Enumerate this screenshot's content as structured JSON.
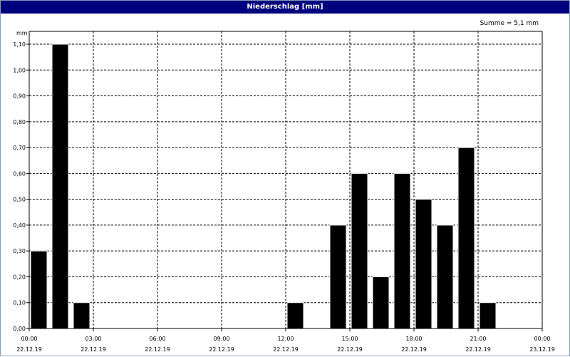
{
  "window": {
    "title": "Niederschlag [mm]",
    "colors": {
      "title_bar": "#00007f",
      "title_text": "#ffffff",
      "bar": "#000000",
      "grid": "#000000"
    }
  },
  "chart_data": {
    "type": "bar",
    "title": "Niederschlag [mm]",
    "ylabel": "mm",
    "annotation": "Summe = 5,1 mm",
    "ylim": [
      0,
      1.1
    ],
    "y_ticks": [
      "0,00",
      "0,10",
      "0,20",
      "0,30",
      "0,40",
      "0,50",
      "0,60",
      "0,70",
      "0,80",
      "0,90",
      "1,00",
      "1,10"
    ],
    "x_range_hours": [
      0,
      24
    ],
    "x_ticks": [
      {
        "hour": 0,
        "time": "00:00",
        "date": "22.12.19"
      },
      {
        "hour": 3,
        "time": "03:00",
        "date": "22.12.19"
      },
      {
        "hour": 6,
        "time": "06:00",
        "date": "22.12.19"
      },
      {
        "hour": 9,
        "time": "09:00",
        "date": "22.12.19"
      },
      {
        "hour": 12,
        "time": "12:00",
        "date": "22.12.19"
      },
      {
        "hour": 15,
        "time": "15:00",
        "date": "22.12.19"
      },
      {
        "hour": 18,
        "time": "18:00",
        "date": "22.12.19"
      },
      {
        "hour": 21,
        "time": "21:00",
        "date": "22.12.19"
      },
      {
        "hour": 24,
        "time": "00:00",
        "date": "23.12.19"
      }
    ],
    "grid": true,
    "bar_hours": [
      0,
      1,
      2,
      3,
      4,
      5,
      6,
      7,
      8,
      9,
      10,
      11,
      12,
      13,
      14,
      15,
      16,
      17,
      18,
      19,
      20,
      21,
      22,
      23
    ],
    "values": [
      0.3,
      1.1,
      0.1,
      0,
      0,
      0,
      0,
      0,
      0,
      0,
      0,
      0,
      0.1,
      0,
      0.4,
      0.6,
      0.2,
      0.6,
      0.5,
      0.4,
      0.7,
      0.1,
      0,
      0
    ]
  }
}
